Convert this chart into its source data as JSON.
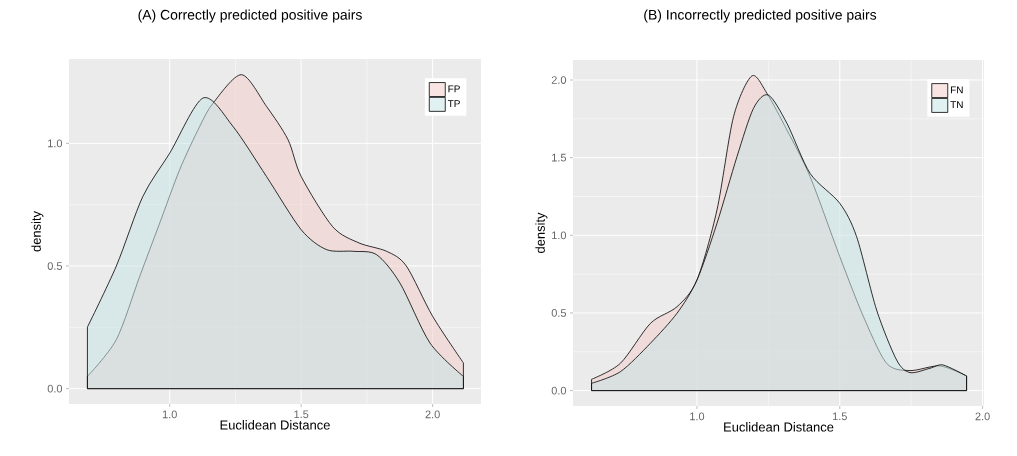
{
  "chart_data": [
    {
      "type": "area",
      "title": "(A) Correctly predicted positive pairs",
      "xlabel": "Euclidean Distance",
      "ylabel": "density",
      "xlim": [
        0.617,
        2.184
      ],
      "ylim": [
        -0.0625,
        1.344
      ],
      "xticks": [
        {
          "value": 1.0,
          "label": "1.0"
        },
        {
          "value": 1.5,
          "label": "1.5"
        },
        {
          "value": 2.0,
          "label": "2.0"
        }
      ],
      "yticks": [
        {
          "value": 0.0,
          "label": "0.0"
        },
        {
          "value": 0.5,
          "label": "0.5"
        },
        {
          "value": 1.0,
          "label": "1.0"
        }
      ],
      "grid": true,
      "legend": "top right",
      "series": [
        {
          "name": "FP",
          "color": "#f2cfcc",
          "x": [
            0.687,
            0.797,
            0.886,
            0.962,
            1.038,
            1.114,
            1.165,
            1.273,
            1.368,
            1.45,
            1.5,
            1.62,
            1.72,
            1.825,
            1.9,
            2.0,
            2.117
          ],
          "values": [
            0.05,
            0.2,
            0.458,
            0.675,
            0.893,
            1.069,
            1.164,
            1.28,
            1.151,
            1.015,
            0.865,
            0.66,
            0.594,
            0.56,
            0.5,
            0.295,
            0.105
          ]
        },
        {
          "name": "TP",
          "color": "#c8e4e4",
          "x": [
            0.687,
            0.797,
            0.898,
            1.0,
            1.127,
            1.24,
            1.368,
            1.5,
            1.596,
            1.698,
            1.787,
            1.876,
            1.99,
            2.117
          ],
          "values": [
            0.251,
            0.5,
            0.784,
            0.96,
            1.185,
            1.07,
            0.865,
            0.648,
            0.567,
            0.56,
            0.546,
            0.43,
            0.186,
            0.05
          ]
        }
      ]
    },
    {
      "type": "area",
      "title": "(B) Incorrectly predicted positive pairs",
      "xlabel": "Euclidean Distance",
      "ylabel": "density",
      "xlim": [
        0.566,
        2.005
      ],
      "ylim": [
        -0.099,
        2.129
      ],
      "xticks": [
        {
          "value": 1.0,
          "label": "1.0"
        },
        {
          "value": 1.5,
          "label": "1.5"
        },
        {
          "value": 2.0,
          "label": "2.0"
        }
      ],
      "yticks": [
        {
          "value": 0.0,
          "label": "0.0"
        },
        {
          "value": 0.5,
          "label": "0.5"
        },
        {
          "value": 1.0,
          "label": "1.0"
        },
        {
          "value": 1.5,
          "label": "1.5"
        },
        {
          "value": 2.0,
          "label": "2.0"
        }
      ],
      "grid": true,
      "legend": "top right",
      "series": [
        {
          "name": "FN",
          "color": "#f2cfcc",
          "x": [
            0.631,
            0.732,
            0.837,
            0.93,
            1.0,
            1.07,
            1.128,
            1.192,
            1.245,
            1.315,
            1.396,
            1.5,
            1.583,
            1.664,
            1.746,
            1.851,
            1.944
          ],
          "values": [
            0.073,
            0.176,
            0.433,
            0.54,
            0.712,
            1.163,
            1.764,
            2.026,
            1.914,
            1.678,
            1.378,
            0.863,
            0.476,
            0.176,
            0.129,
            0.159,
            0.094
          ]
        },
        {
          "name": "TN",
          "color": "#c8e4e4",
          "x": [
            0.631,
            0.732,
            0.837,
            0.93,
            1.0,
            1.07,
            1.14,
            1.198,
            1.25,
            1.315,
            1.396,
            1.5,
            1.559,
            1.629,
            1.699,
            1.746,
            1.816,
            1.862,
            1.944
          ],
          "values": [
            0.047,
            0.122,
            0.305,
            0.498,
            0.712,
            1.077,
            1.506,
            1.818,
            1.903,
            1.721,
            1.399,
            1.206,
            0.991,
            0.519,
            0.197,
            0.116,
            0.144,
            0.165,
            0.094
          ]
        }
      ]
    }
  ]
}
